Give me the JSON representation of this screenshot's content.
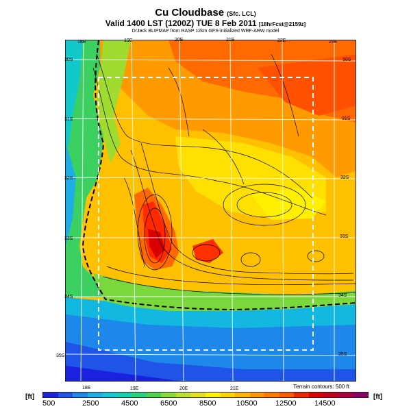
{
  "header": {
    "title": "Cu Cloudbase",
    "title_suffix": "(Sfc. LCL)",
    "subtitle": "Valid 1400 LST (1200Z) TUE 8 Feb 2011",
    "subtitle_suffix": "[18hrFcst@2159z]",
    "credit": "DrJack BLIPMAP from RASP 12km GFS-initialized WRF-ARW model"
  },
  "map": {
    "lon_labels_top": [
      "18E",
      "19E",
      "20E",
      "21E",
      "22E",
      "23E"
    ],
    "lon_labels_bottom": [
      "18E",
      "19E",
      "20E",
      "21E",
      "22E"
    ],
    "lat_labels_left": [
      "30S",
      "31S",
      "32S",
      "33S",
      "34S",
      "35S"
    ],
    "lat_labels_right": [
      "30S",
      "31S",
      "32S",
      "33S",
      "34S",
      "35S"
    ],
    "terrain_note": "Terrain contours: 500 ft"
  },
  "colorbar": {
    "unit": "[ft]",
    "tick_labels": [
      "500",
      "2500",
      "4500",
      "6500",
      "8500",
      "10500",
      "12500",
      "14500"
    ],
    "colors": [
      "#1a22e0",
      "#1e55e8",
      "#1e88ea",
      "#1eaee6",
      "#12c8d8",
      "#12d2b0",
      "#28d27c",
      "#4cd24c",
      "#86dc36",
      "#bee02c",
      "#e4e01e",
      "#fff000",
      "#ffd200",
      "#ffb400",
      "#ff9600",
      "#ff7a00",
      "#ff5a00",
      "#f02800",
      "#e00000",
      "#c40018",
      "#a8003c",
      "#8a0064"
    ]
  }
}
